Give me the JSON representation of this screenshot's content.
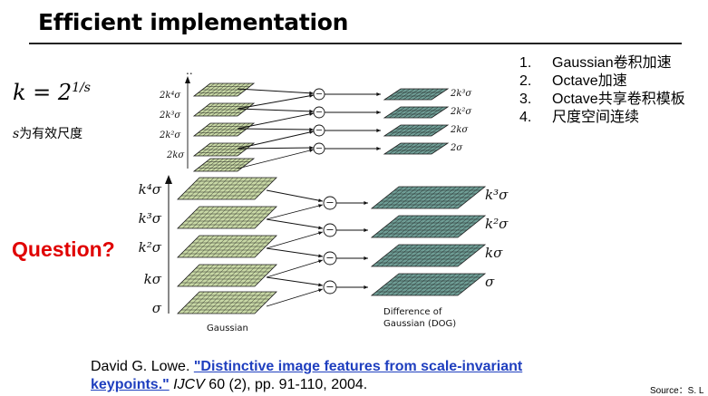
{
  "slide": {
    "title": "Efficient implementation",
    "formula_lhs": "k = 2",
    "formula_exp": "1/s",
    "note_var": "s",
    "note_text": "为有效尺度",
    "question": "Question?",
    "steps": [
      {
        "num": "1.",
        "text": "Gaussian卷积加速"
      },
      {
        "num": "2.",
        "text": "Octave加速"
      },
      {
        "num": "3.",
        "text": "Octave共享卷积模板"
      },
      {
        "num": "4.",
        "text": "尺度空间连续"
      }
    ],
    "citation": {
      "author": "David G. Lowe. ",
      "link_text": "\"Distinctive image features from scale-invariant keypoints.\"",
      "venue": " IJCV",
      "details": " 60 (2), pp. 91-110, 2004."
    },
    "source": "Source：S. L"
  },
  "diagram": {
    "dots": "..",
    "top_left_labels": [
      "2k⁴σ",
      "2k³σ",
      "2k²σ",
      "2kσ"
    ],
    "top_right_labels": [
      "2k³σ",
      "2k²σ",
      "2kσ",
      "2σ"
    ],
    "bottom_left_labels": [
      "k⁴σ",
      "k³σ",
      "k²σ",
      "kσ",
      "σ"
    ],
    "bottom_right_labels": [
      "k³σ",
      "k²σ",
      "kσ",
      "σ"
    ],
    "minus_sign": "−",
    "gaussian_caption": "Gaussian",
    "dog_caption_1": "Difference of",
    "dog_caption_2": "Gaussian (DOG)",
    "colors": {
      "gaussian_grid": "#c9d9a6",
      "dog_grid": "#6f9e96",
      "grid_lines": "#1a1a1a",
      "link_blue": "#1f3fbf",
      "question_red": "#e00000"
    }
  }
}
